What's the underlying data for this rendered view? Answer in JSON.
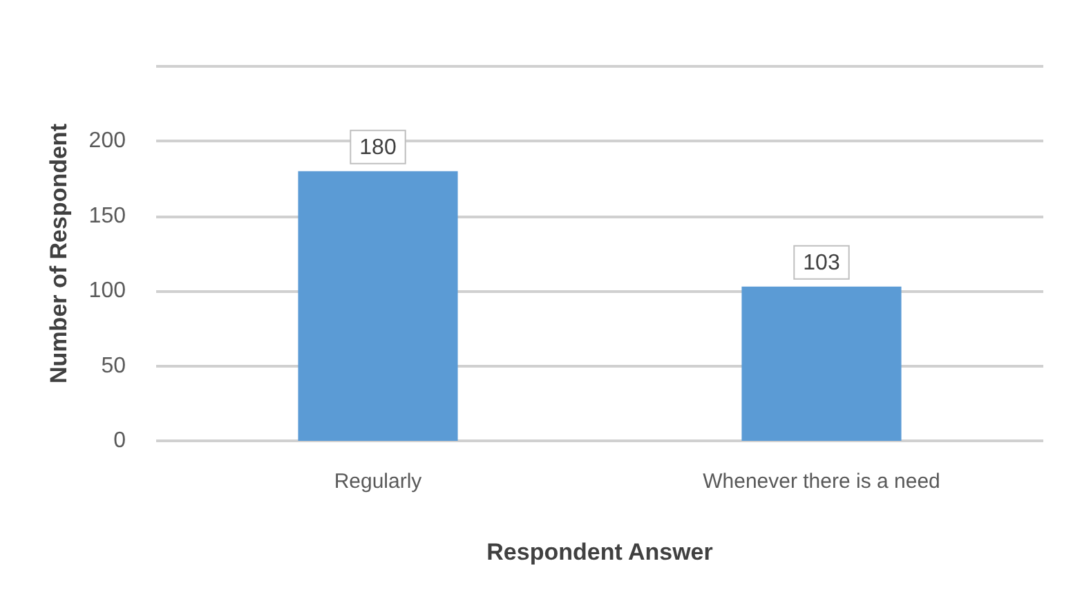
{
  "chart_data": {
    "type": "bar",
    "xlabel": "Respondent Answer",
    "ylabel": "Number of Respondent",
    "categories": [
      "Regularly",
      "Whenever there is a need"
    ],
    "values": [
      180,
      103
    ],
    "color": "#5b9bd5",
    "ylim": [
      0,
      250
    ],
    "yticks": [
      0,
      50,
      100,
      150,
      200,
      {
        "value": 250,
        "label": null
      }
    ],
    "grid": true,
    "data_labels": true
  }
}
